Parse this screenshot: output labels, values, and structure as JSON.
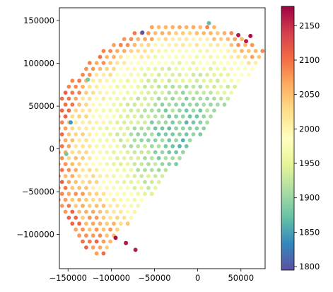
{
  "chart_data": {
    "type": "scatter",
    "title": "",
    "xlabel": "",
    "ylabel": "",
    "xlim": [
      -160000,
      78000
    ],
    "ylim": [
      -140000,
      165000
    ],
    "x_ticks": [
      -150000,
      -100000,
      -50000,
      0,
      50000
    ],
    "x_tick_labels": [
      "−150000",
      "−100000",
      "−50000",
      "0",
      "50000"
    ],
    "y_ticks": [
      -100000,
      -50000,
      0,
      50000,
      100000,
      150000
    ],
    "y_tick_labels": [
      "−100000",
      "−50000",
      "0",
      "50000",
      "100000",
      "150000"
    ],
    "grid": false,
    "colorbar": {
      "cmap": "Spectral_r",
      "range": [
        1795,
        2178
      ],
      "ticks": [
        1800,
        1850,
        1900,
        1950,
        2000,
        2050,
        2100,
        2150
      ],
      "tick_labels": [
        "1800",
        "1850",
        "1900",
        "1950",
        "2000",
        "2050",
        "2100",
        "2150"
      ]
    },
    "field": {
      "description_units": "points on a hex-like grid inside a half-disk wedge; color by value",
      "grid_spacing": 8000,
      "wedge_center": [
        -17000,
        -9000
      ],
      "wedge_radius": 156000,
      "wedge_angle_deg": [
        51,
        231
      ],
      "min_center": [
        -15000,
        15000
      ],
      "min_value": 1880,
      "edge_value": 2060
    },
    "outliers": [
      {
        "x": -64000,
        "y": 136000,
        "v": 1800
      },
      {
        "x": -147000,
        "y": 31000,
        "v": 1845
      },
      {
        "x": 13000,
        "y": 147000,
        "v": 1870
      },
      {
        "x": -152000,
        "y": -6000,
        "v": 1880
      },
      {
        "x": -127000,
        "y": 81000,
        "v": 1880
      },
      {
        "x": -72000,
        "y": -118000,
        "v": 2160
      },
      {
        "x": -83000,
        "y": -110000,
        "v": 2165
      },
      {
        "x": -95000,
        "y": -104000,
        "v": 2170
      },
      {
        "x": 56000,
        "y": 126000,
        "v": 2160
      },
      {
        "x": 47000,
        "y": 133000,
        "v": 2165
      },
      {
        "x": 61000,
        "y": 132000,
        "v": 2170
      }
    ]
  }
}
